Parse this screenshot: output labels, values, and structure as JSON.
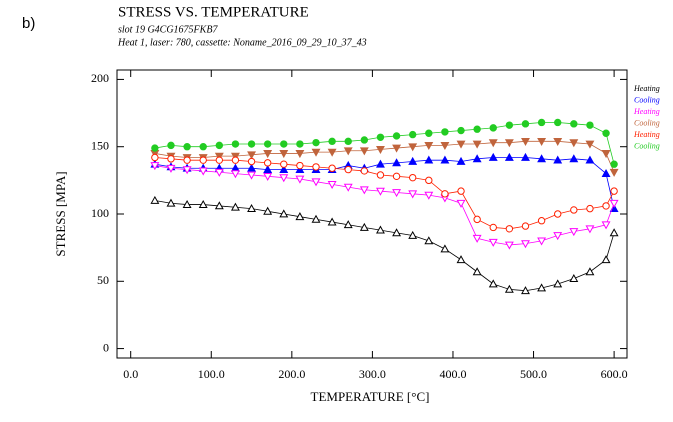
{
  "panel_label": "b)",
  "chart_data": {
    "type": "line",
    "title": "STRESS VS. TEMPERATURE",
    "subtitle": [
      "slot 19  G4CG1675FKB7",
      "Heat 1, laser: 780, cassette: Noname_2016_09_29_10_37_43"
    ],
    "x_label": "TEMPERATURE    [°C]",
    "y_label": "STRESS    [MPA]",
    "x": [
      30,
      50,
      70,
      90,
      110,
      130,
      150,
      170,
      190,
      210,
      230,
      250,
      270,
      290,
      310,
      330,
      350,
      370,
      390,
      410,
      430,
      450,
      470,
      490,
      510,
      530,
      550,
      570,
      590,
      600
    ],
    "series": [
      {
        "name": "Heating",
        "color": "#000000",
        "marker": "triangle-open",
        "values": [
          110,
          108,
          107,
          107,
          106,
          105,
          104,
          102,
          100,
          98,
          96,
          94,
          92,
          90,
          88,
          86,
          84,
          80,
          74,
          66,
          57,
          48,
          44,
          43,
          45,
          48,
          52,
          57,
          66,
          86
        ]
      },
      {
        "name": "Cooling",
        "color": "#0000ff",
        "marker": "triangle",
        "values": [
          137,
          135,
          134,
          134,
          134,
          134,
          134,
          133,
          133,
          133,
          133,
          133,
          136,
          134,
          137,
          138,
          139,
          140,
          140,
          139,
          141,
          142,
          142,
          142,
          141,
          140,
          141,
          140,
          130,
          104
        ]
      },
      {
        "name": "Heating",
        "color": "#ff00ff",
        "marker": "triangle-down-open",
        "values": [
          136,
          134,
          133,
          132,
          131,
          130,
          129,
          128,
          127,
          126,
          124,
          122,
          120,
          118,
          117,
          116,
          115,
          114,
          112,
          108,
          82,
          79,
          77,
          78,
          80,
          84,
          87,
          89,
          92,
          108
        ]
      },
      {
        "name": "Cooling",
        "color": "#c0643c",
        "marker": "triangle-down",
        "values": [
          145,
          143,
          142,
          142,
          143,
          143,
          144,
          145,
          145,
          145,
          146,
          146,
          147,
          147,
          148,
          149,
          150,
          151,
          151,
          152,
          152,
          153,
          153,
          154,
          154,
          154,
          153,
          152,
          145,
          131
        ]
      },
      {
        "name": "Heating",
        "color": "#ff2000",
        "marker": "circle-open",
        "values": [
          142,
          141,
          140,
          140,
          140,
          140,
          139,
          138,
          137,
          136,
          135,
          134,
          133,
          132,
          129,
          128,
          127,
          125,
          115,
          117,
          96,
          90,
          89,
          91,
          95,
          100,
          103,
          104,
          106,
          117
        ]
      },
      {
        "name": "Cooling",
        "color": "#22cc22",
        "marker": "circle",
        "values": [
          149,
          151,
          150,
          150,
          151,
          152,
          152,
          152,
          152,
          152,
          153,
          154,
          154,
          155,
          157,
          158,
          159,
          160,
          161,
          162,
          163,
          164,
          166,
          167,
          168,
          168,
          167,
          166,
          160,
          137
        ]
      }
    ],
    "xlim": [
      -17,
      616
    ],
    "ylim": [
      -7,
      207
    ],
    "xticks": [
      {
        "value": 0,
        "label": "0.0"
      },
      {
        "value": 100,
        "label": "100.0"
      },
      {
        "value": 200,
        "label": "200.0"
      },
      {
        "value": 300,
        "label": "300.0"
      },
      {
        "value": 400,
        "label": "400.0"
      },
      {
        "value": 500,
        "label": "500.0"
      },
      {
        "value": 600,
        "label": "600.0"
      }
    ],
    "yticks": [
      0,
      50,
      100,
      150,
      200
    ],
    "legend": "right"
  }
}
